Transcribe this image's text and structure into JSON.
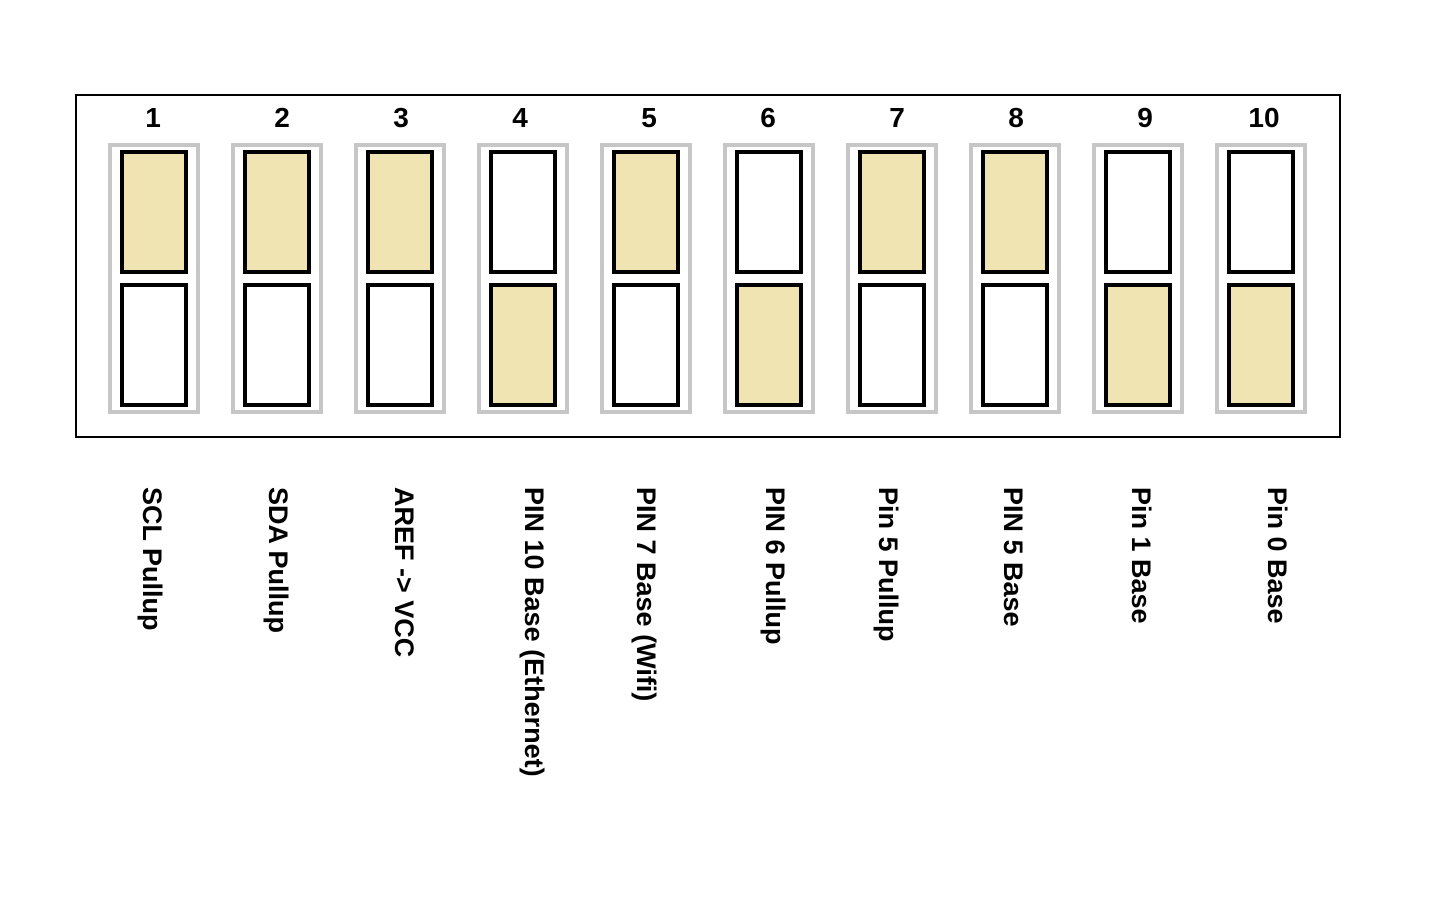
{
  "colors": {
    "on": "#f1e4b3",
    "off": "#ffffff",
    "housing": "#c6c6c6",
    "outline": "#000000"
  },
  "switches": [
    {
      "number": "1",
      "label": "SCL Pullup",
      "position": "top"
    },
    {
      "number": "2",
      "label": "SDA Pullup",
      "position": "top"
    },
    {
      "number": "3",
      "label": "AREF -> VCC",
      "position": "top"
    },
    {
      "number": "4",
      "label": "PIN 10 Base (Ethernet)",
      "position": "bottom"
    },
    {
      "number": "5",
      "label": "PIN 7 Base (Wifi)",
      "position": "top"
    },
    {
      "number": "6",
      "label": "PIN 6 Pullup",
      "position": "bottom"
    },
    {
      "number": "7",
      "label": "Pin 5 Pullup",
      "position": "top"
    },
    {
      "number": "8",
      "label": "PIN 5 Base",
      "position": "top"
    },
    {
      "number": "9",
      "label": "Pin 1 Base",
      "position": "bottom"
    },
    {
      "number": "10",
      "label": "Pin 0 Base",
      "position": "bottom"
    }
  ]
}
